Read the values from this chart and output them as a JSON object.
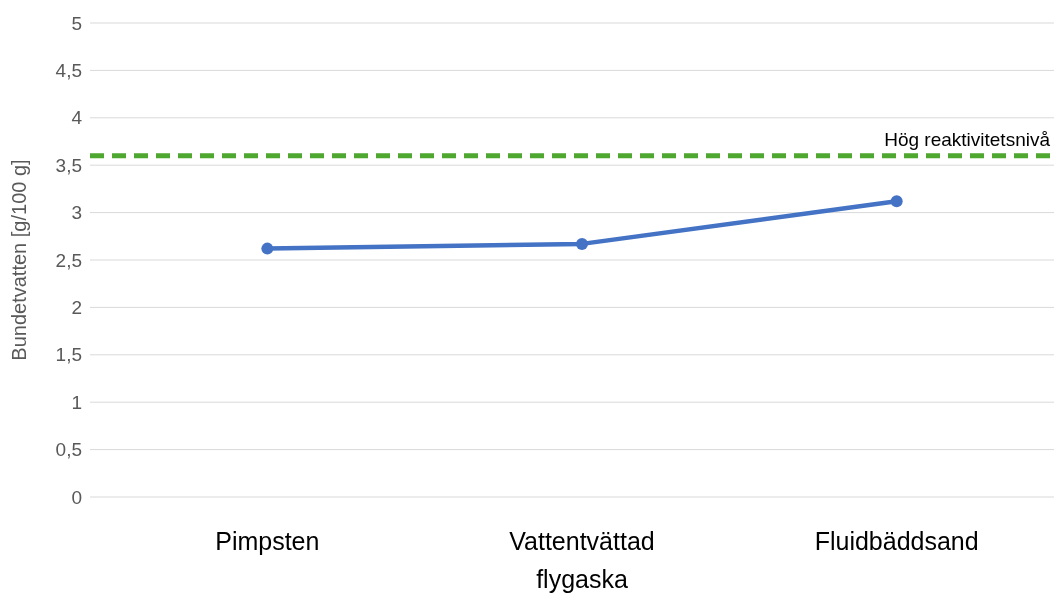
{
  "chart_data": {
    "type": "line",
    "ylabel": "Bundetvatten [g/100 g]",
    "categories": [
      "Pimpsten",
      "Vattentvättad flygaska",
      "Fluidbäddsand"
    ],
    "series": [
      {
        "color": "#4472c4",
        "values": [
          2.62,
          2.67,
          3.12
        ]
      }
    ],
    "ylim": [
      0,
      5
    ],
    "yticks": [
      0,
      {
        "value": 0.5,
        "label": "0,5"
      },
      1,
      {
        "value": 1.5,
        "label": "1,5"
      },
      2,
      {
        "value": 2.5,
        "label": "2,5"
      },
      3,
      {
        "value": 3.5,
        "label": "3,5"
      },
      4,
      {
        "value": 4.5,
        "label": "4,5"
      },
      5
    ],
    "ref_lines": [
      {
        "axis": "y",
        "value": 3.6,
        "label": "Hög reaktivitetsnivå",
        "color": "#4ea72e",
        "line_style": "dashed"
      }
    ],
    "grid": "y",
    "marker": "circle",
    "line_style": "solid"
  }
}
